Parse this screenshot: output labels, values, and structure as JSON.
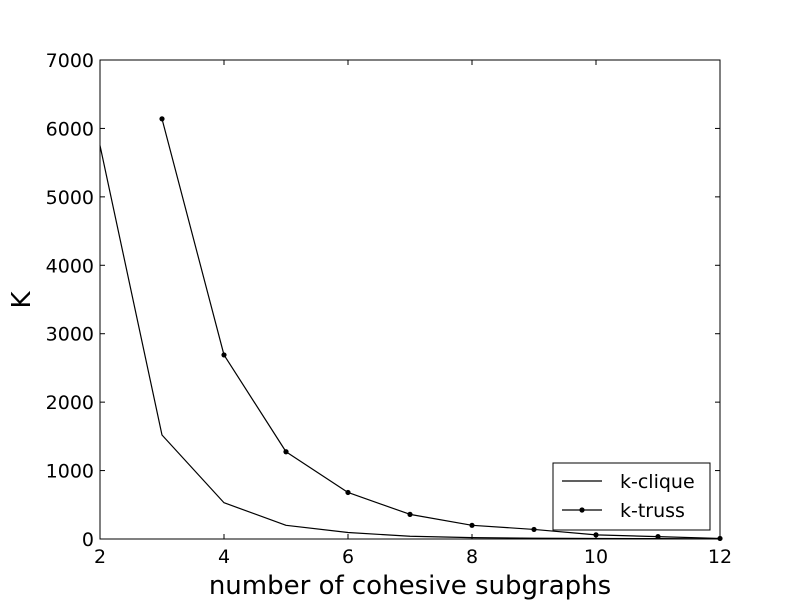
{
  "chart_data": {
    "type": "line",
    "title": "",
    "xlabel": "number of cohesive subgraphs",
    "ylabel": "K",
    "xlim": [
      2,
      12
    ],
    "ylim": [
      0,
      7000
    ],
    "x_ticks": [
      2,
      4,
      6,
      8,
      10,
      12
    ],
    "y_ticks": [
      0,
      1000,
      2000,
      3000,
      4000,
      5000,
      6000,
      7000
    ],
    "x_tick_labels": [
      "2",
      "4",
      "6",
      "8",
      "10",
      "12"
    ],
    "y_tick_labels": [
      "0",
      "1000",
      "2000",
      "3000",
      "4000",
      "5000",
      "6000",
      "7000"
    ],
    "grid": false,
    "legend_position": "lower-right",
    "series": [
      {
        "name": "k-clique",
        "marker": "none",
        "color": "#000000",
        "x": [
          2,
          3,
          4,
          5,
          6,
          7,
          8,
          9,
          10,
          11,
          12
        ],
        "y": [
          5750,
          1520,
          530,
          200,
          95,
          40,
          20,
          12,
          8,
          5,
          2
        ]
      },
      {
        "name": "k-truss",
        "marker": "dot",
        "color": "#000000",
        "x": [
          3,
          4,
          5,
          6,
          7,
          8,
          9,
          10,
          11,
          12
        ],
        "y": [
          6140,
          2690,
          1275,
          680,
          360,
          200,
          140,
          60,
          35,
          8
        ]
      }
    ]
  }
}
